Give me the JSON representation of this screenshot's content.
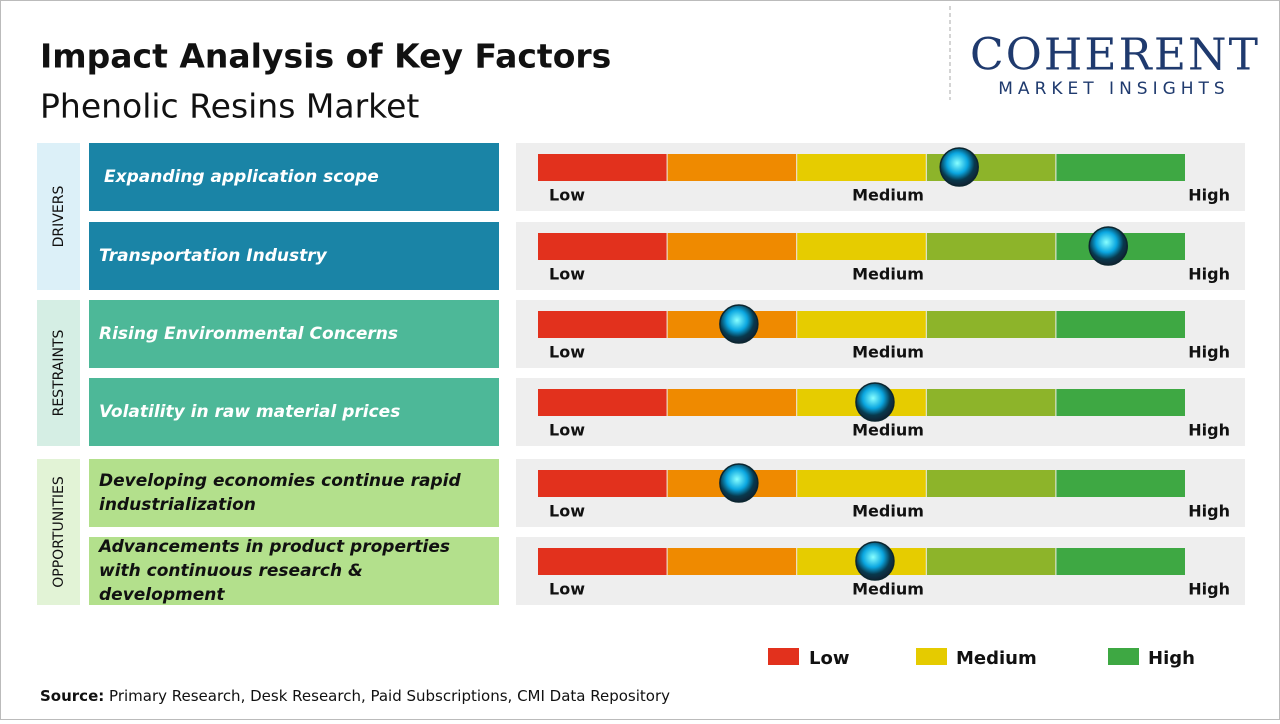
{
  "header": {
    "title": "Impact Analysis of Key Factors",
    "subtitle": "Phenolic Resins Market"
  },
  "logo": {
    "name": "COHERENT",
    "tagline": "MARKET INSIGHTS"
  },
  "scale_labels": [
    "Low",
    "Medium",
    "High"
  ],
  "groups": [
    {
      "label": "DRIVERS",
      "factors": [
        {
          "text": "Expanding application scope",
          "impact": 0.65
        },
        {
          "text": "Transportation Industry",
          "impact": 0.88
        }
      ]
    },
    {
      "label": "RESTRAINTS",
      "factors": [
        {
          "text": "Rising Environmental Concerns",
          "impact": 0.31
        },
        {
          "text": "Volatility in raw material prices",
          "impact": 0.52
        }
      ]
    },
    {
      "label": "OPPORTUNITIES",
      "factors": [
        {
          "text": "Developing economies continue rapid industrialization",
          "impact": 0.31
        },
        {
          "text": "Advancements in product properties with continuous research & development",
          "impact": 0.52
        }
      ]
    }
  ],
  "legend": [
    {
      "label": "Low",
      "color": "#e2311d"
    },
    {
      "label": "Medium",
      "color": "#e5cb00"
    },
    {
      "label": "High",
      "color": "#3ea843"
    }
  ],
  "source": {
    "label": "Source:",
    "text": "Primary Research, Desk Research, Paid Subscriptions, CMI Data Repository"
  }
}
